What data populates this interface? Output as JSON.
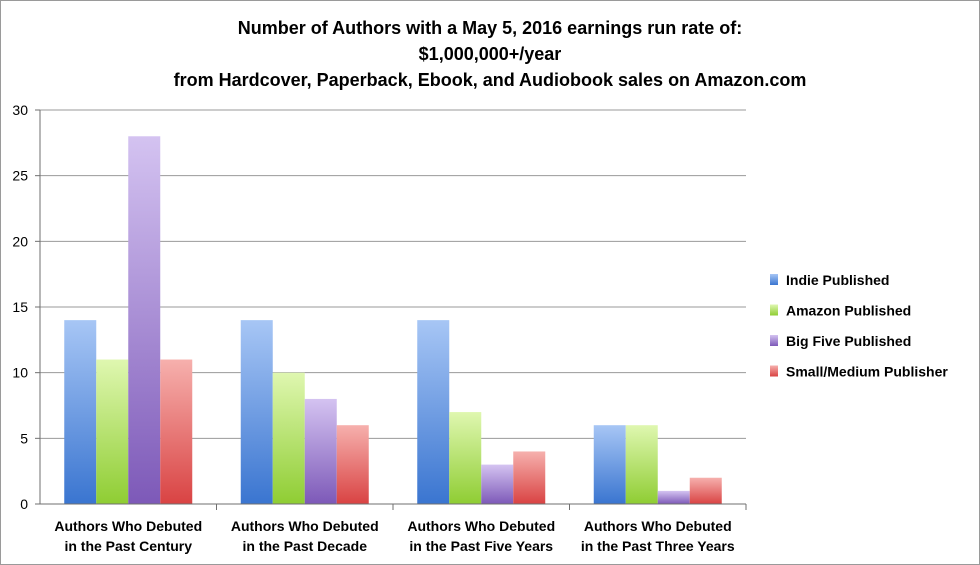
{
  "chart_data": {
    "type": "bar",
    "title": [
      "Number of Authors with a May 5, 2016 earnings run rate of:",
      "$1,000,000+/year",
      "from Hardcover, Paperback, Ebook, and Audiobook sales on Amazon.com"
    ],
    "categories": [
      [
        "Authors Who Debuted",
        "in the Past Century"
      ],
      [
        "Authors Who Debuted",
        "in the Past Decade"
      ],
      [
        "Authors Who Debuted",
        "in the Past Five Years"
      ],
      [
        "Authors Who Debuted",
        "in the Past Three Years"
      ]
    ],
    "series": [
      {
        "name": "Indie Published",
        "values": [
          14,
          14,
          14,
          6
        ],
        "color_top": "#a7c6f5",
        "color_bottom": "#3a75d0"
      },
      {
        "name": "Amazon Published",
        "values": [
          11,
          10,
          7,
          6
        ],
        "color_top": "#dff7b0",
        "color_bottom": "#8fcd33"
      },
      {
        "name": "Big Five Published",
        "values": [
          28,
          8,
          3,
          1
        ],
        "color_top": "#d4c3f1",
        "color_bottom": "#7d59b8"
      },
      {
        "name": "Small/Medium Publisher",
        "values": [
          11,
          6,
          4,
          2
        ],
        "color_top": "#f6b0ad",
        "color_bottom": "#d94343"
      }
    ],
    "ylim": [
      0,
      30
    ],
    "yticks": [
      0,
      5,
      10,
      15,
      20,
      25,
      30
    ],
    "grid": true,
    "legend_position": "right"
  }
}
